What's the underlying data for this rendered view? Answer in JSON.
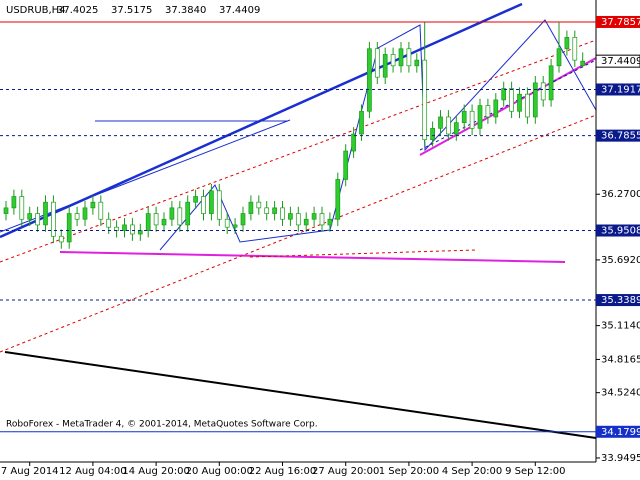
{
  "header": {
    "symbol": "USDRUB,H4",
    "open": "37.4025",
    "high": "37.5175",
    "low": "37.3840",
    "close": "37.4409"
  },
  "footer": "RoboForex - MetaTrader 4, © 2001-2014, MetaQuotes Software Corp.",
  "chart_data": {
    "type": "candlestick",
    "categories": [
      null,
      null,
      null,
      "7 Aug 2014",
      null,
      null,
      null,
      null,
      null,
      null,
      null,
      "12 Aug 04:00",
      null,
      null,
      null,
      null,
      null,
      null,
      null,
      "14 Aug 20:00",
      null,
      null,
      null,
      null,
      null,
      null,
      null,
      "20 Aug 00:00",
      null,
      null,
      null,
      null,
      null,
      null,
      null,
      "22 Aug 16:00",
      null,
      null,
      null,
      null,
      null,
      null,
      null,
      "27 Aug 20:00",
      null,
      null,
      null,
      null,
      null,
      null,
      null,
      "1 Sep 20:00",
      null,
      null,
      null,
      null,
      null,
      null,
      null,
      "4 Sep 20:00",
      null,
      null,
      null,
      null,
      null,
      null,
      null,
      "9 Sep 12:00",
      null,
      null,
      null,
      null,
      null,
      null
    ],
    "open": [
      36.1,
      36.15,
      36.25,
      36.05,
      36.1,
      36.0,
      36.2,
      35.9,
      35.85,
      36.1,
      36.05,
      36.15,
      36.2,
      36.05,
      35.98,
      35.95,
      36.0,
      35.92,
      35.95,
      36.1,
      36.0,
      36.05,
      36.15,
      36.0,
      36.2,
      36.25,
      36.1,
      36.3,
      36.05,
      35.98,
      36.0,
      36.1,
      36.2,
      36.15,
      36.1,
      36.15,
      36.05,
      36.1,
      36.0,
      36.05,
      36.1,
      36.0,
      36.05,
      36.4,
      36.65,
      36.8,
      37.0,
      37.55,
      37.3,
      37.5,
      37.4,
      37.55,
      37.4,
      37.45,
      36.75,
      36.85,
      36.95,
      36.8,
      36.9,
      37.0,
      36.85,
      37.05,
      36.95,
      37.1,
      37.2,
      37.0,
      37.15,
      36.95,
      37.25,
      37.1,
      37.4,
      37.55,
      37.65,
      37.4025
    ],
    "high": [
      36.21,
      36.31,
      36.31,
      36.16,
      36.16,
      36.26,
      36.26,
      35.96,
      36.16,
      36.16,
      36.21,
      36.26,
      36.26,
      36.11,
      36.04,
      36.06,
      36.06,
      36.01,
      36.16,
      36.16,
      36.11,
      36.21,
      36.21,
      36.26,
      36.31,
      36.31,
      36.36,
      36.36,
      36.11,
      36.06,
      36.16,
      36.26,
      36.26,
      36.21,
      36.21,
      36.21,
      36.16,
      36.16,
      36.11,
      36.16,
      36.16,
      36.11,
      36.46,
      36.71,
      36.86,
      37.06,
      37.61,
      37.61,
      37.56,
      37.56,
      37.61,
      37.61,
      37.51,
      37.7857,
      36.91,
      37.01,
      37.01,
      36.96,
      37.06,
      37.06,
      37.11,
      37.11,
      37.16,
      37.26,
      37.26,
      37.21,
      37.21,
      37.31,
      37.31,
      37.46,
      37.78,
      37.71,
      37.71,
      37.5175
    ],
    "low": [
      36.04,
      36.09,
      35.99,
      35.99,
      35.94,
      35.94,
      35.84,
      35.79,
      35.79,
      35.99,
      35.99,
      36.09,
      35.99,
      35.92,
      35.89,
      35.89,
      35.86,
      35.86,
      35.89,
      35.94,
      35.94,
      35.99,
      35.94,
      35.94,
      36.14,
      36.04,
      36.04,
      35.99,
      35.92,
      35.92,
      35.94,
      36.04,
      36.09,
      36.04,
      36.04,
      35.99,
      35.99,
      35.94,
      35.94,
      35.99,
      35.94,
      35.94,
      35.99,
      36.34,
      36.59,
      36.74,
      36.94,
      37.24,
      37.24,
      37.34,
      37.34,
      37.34,
      37.34,
      36.69,
      36.69,
      36.79,
      36.74,
      36.74,
      36.84,
      36.79,
      36.79,
      36.89,
      36.89,
      37.04,
      36.94,
      36.94,
      36.89,
      36.89,
      37.04,
      37.04,
      37.34,
      37.49,
      37.39,
      37.384
    ],
    "close": [
      36.15,
      36.25,
      36.05,
      36.1,
      36.0,
      36.2,
      35.9,
      35.85,
      36.1,
      36.05,
      36.15,
      36.2,
      36.05,
      35.98,
      35.95,
      36.0,
      35.92,
      35.95,
      36.1,
      36.0,
      36.05,
      36.15,
      36.0,
      36.2,
      36.25,
      36.1,
      36.3,
      36.05,
      35.98,
      36.0,
      36.1,
      36.2,
      36.15,
      36.1,
      36.15,
      36.05,
      36.1,
      36.0,
      36.05,
      36.1,
      36.0,
      36.05,
      36.4,
      36.65,
      36.8,
      37.0,
      37.55,
      37.3,
      37.5,
      37.4,
      37.55,
      37.4,
      37.45,
      36.75,
      36.85,
      36.95,
      36.8,
      36.9,
      37.0,
      36.85,
      37.05,
      36.95,
      37.1,
      37.2,
      37.0,
      37.15,
      36.95,
      37.25,
      37.1,
      37.4,
      37.55,
      37.65,
      37.45,
      37.4409
    ],
    "up_color": "#2ecc2e",
    "down_color": "#ffffff",
    "wick_color": "#1a9a1a",
    "ylim": [
      33.914,
      37.979
    ],
    "yticks": [
      {
        "value": 36.27,
        "label": "36.2700"
      },
      {
        "value": 35.692,
        "label": "35.6920"
      },
      {
        "value": 35.114,
        "label": "35.1140"
      },
      34.8165,
      {
        "value": 34.524,
        "label": "34.5240"
      },
      33.9495
    ],
    "levels": [
      {
        "value": 37.7857,
        "color": "#e00000",
        "style": "solid"
      },
      {
        "value": 37.1917,
        "color": "#0a1a8c",
        "style": "dashed"
      },
      {
        "value": 36.7855,
        "color": "#0a1a8c",
        "style": "dashed"
      },
      {
        "value": 35.9508,
        "color": "#0a1a8c",
        "style": "dashed"
      },
      {
        "value": 35.3389,
        "color": "#0a1a8c",
        "style": "dashed"
      },
      {
        "value": 34.1799,
        "color": "#1530c8",
        "style": "solid"
      }
    ],
    "current_price": 37.4409
  }
}
